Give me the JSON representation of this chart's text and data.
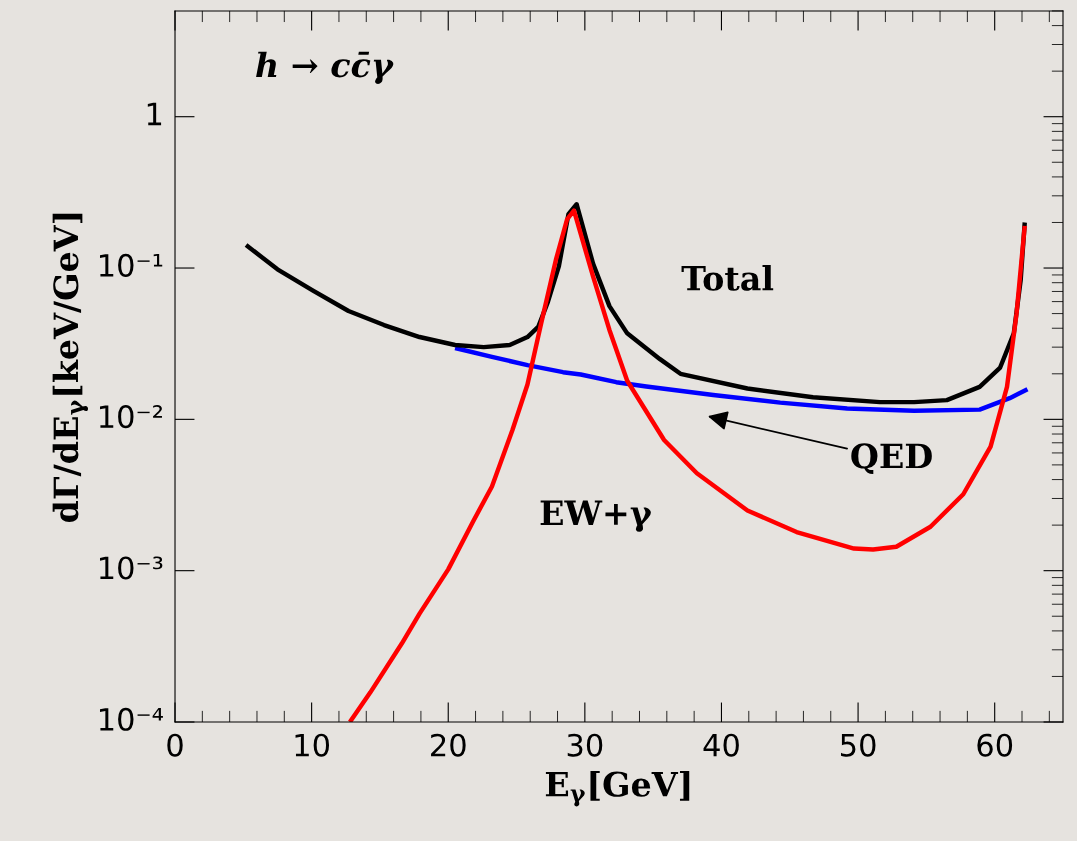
{
  "chart_data": {
    "type": "line",
    "log": "y",
    "xlabel": "E$_{γ}$[GeV]",
    "ylabel": "dΓ/dE$_{γ}$[keV/GeV]",
    "annotations": [
      "h → cc̄γ"
    ],
    "xlim": [
      0,
      65
    ],
    "xticks": [
      0,
      10,
      20,
      30,
      40,
      50,
      60
    ],
    "ylim": [
      0.0001,
      5
    ],
    "yticks": [
      {
        "value": 0.0001,
        "label": "10⁻⁴"
      },
      {
        "value": 0.001,
        "label": "10⁻³"
      },
      {
        "value": 0.01,
        "label": "10⁻²"
      },
      {
        "value": 0.1,
        "label": "10⁻¹"
      },
      {
        "value": 1,
        "label": "1"
      }
    ],
    "grid": false,
    "legend": false,
    "marker": "none",
    "line_style": "solid",
    "series": [
      {
        "name": "QED",
        "color": "#0000ff",
        "x": [
          20.5,
          23.2,
          25.8,
          28.4,
          29.7,
          32.3,
          34.5,
          39.4,
          44.3,
          49.2,
          54.1,
          58.9,
          61.1,
          62.4
        ],
        "values": [
          0.0296,
          0.0259,
          0.0228,
          0.0205,
          0.0198,
          0.0176,
          0.0165,
          0.0145,
          0.0129,
          0.0118,
          0.0114,
          0.0116,
          0.0138,
          0.0158
        ]
      },
      {
        "name": "Total",
        "color": "#000000",
        "x": [
          5.2,
          7.5,
          10.1,
          12.7,
          15.3,
          17.9,
          20.5,
          22.6,
          24.5,
          25.8,
          26.6,
          27.3,
          28.1,
          28.8,
          29.4,
          30.6,
          31.8,
          33.1,
          35.5,
          37.0,
          41.9,
          46.7,
          51.6,
          54.1,
          56.5,
          58.9,
          60.4,
          61.4,
          61.9,
          62.2
        ],
        "values": [
          0.142,
          0.098,
          0.071,
          0.052,
          0.042,
          0.035,
          0.031,
          0.03,
          0.031,
          0.035,
          0.041,
          0.06,
          0.103,
          0.227,
          0.264,
          0.107,
          0.056,
          0.037,
          0.025,
          0.02,
          0.016,
          0.014,
          0.013,
          0.013,
          0.0134,
          0.0164,
          0.022,
          0.037,
          0.083,
          0.2
        ]
      },
      {
        "name": "EW+γ",
        "color": "#ff0000",
        "x": [
          12.8,
          14.3,
          16.6,
          17.9,
          20.0,
          21.8,
          23.2,
          24.7,
          25.8,
          26.8,
          27.9,
          28.7,
          29.2,
          30.6,
          31.8,
          33.1,
          35.8,
          38.2,
          41.9,
          45.5,
          49.7,
          51.1,
          52.8,
          55.3,
          57.7,
          59.7,
          60.9,
          61.6,
          62.2
        ],
        "values": [
          0.0001,
          0.000157,
          0.00033,
          0.00052,
          0.00102,
          0.0021,
          0.0036,
          0.0085,
          0.017,
          0.043,
          0.115,
          0.21,
          0.24,
          0.088,
          0.039,
          0.018,
          0.0073,
          0.0044,
          0.0025,
          0.0018,
          0.0014,
          0.00138,
          0.00144,
          0.00195,
          0.0032,
          0.0066,
          0.0164,
          0.05,
          0.19
        ]
      }
    ]
  }
}
